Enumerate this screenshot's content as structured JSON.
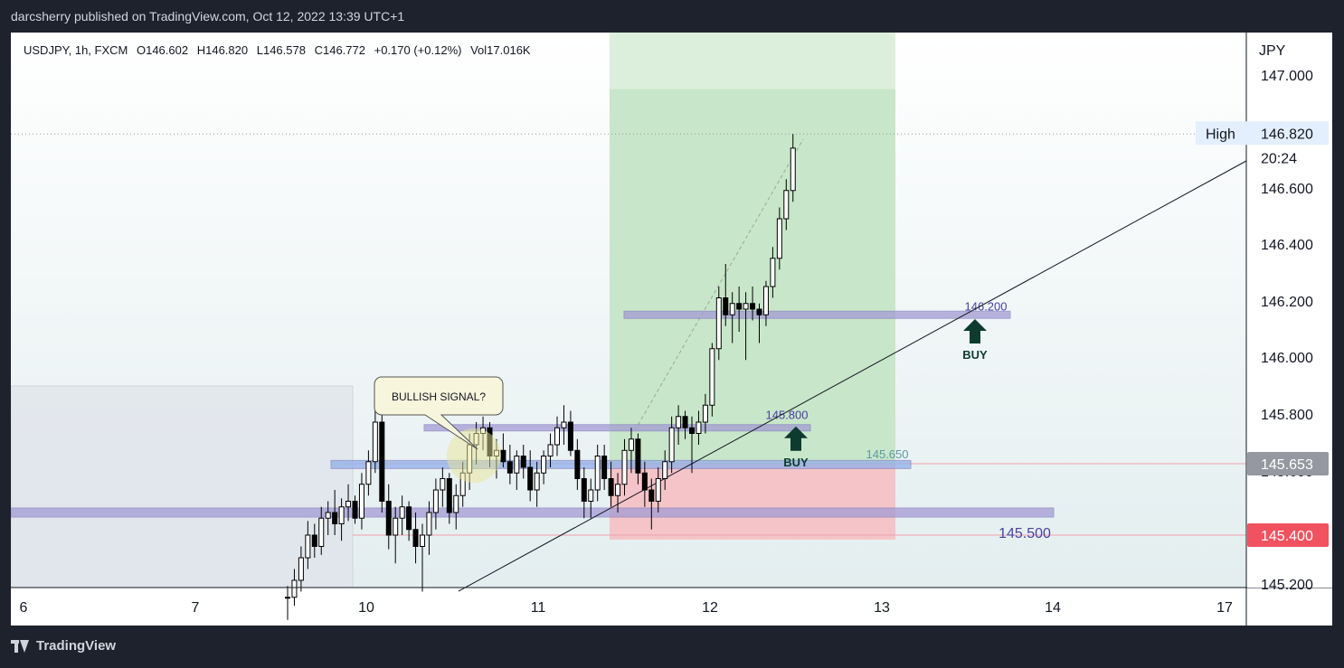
{
  "header": {
    "published": "darcsherry published on TradingView.com, Oct 12, 2022 13:39 UTC+1"
  },
  "legend": {
    "symbol": "USDJPY, 1h, FXCM",
    "open": "O146.602",
    "high": "H146.820",
    "low": "L146.578",
    "close": "C146.772",
    "change": "+0.170 (+0.12%)",
    "volume": "Vol17.016K"
  },
  "footer": {
    "brand": "TradingView"
  },
  "colors": {
    "bull": "#ffffff",
    "bear": "#000000",
    "wick": "#000000",
    "zone": "#a39bd4",
    "zone_blue": "#8fb0e8",
    "profit": "#c8e6c9",
    "loss": "#f4c4c8",
    "buy_arrow": "#0d3b2e",
    "price_red": "#f0525f",
    "price_grey": "#9598a1"
  },
  "chart_data": {
    "type": "candlestick",
    "currency": "JPY",
    "x_ticks": [
      "6",
      "7",
      "10",
      "11",
      "12",
      "13",
      "14",
      "17"
    ],
    "y_ticks": [
      "147.000",
      "146.600",
      "146.400",
      "146.200",
      "146.000",
      "145.800",
      "145.600",
      "145.200"
    ],
    "ylim": [
      145.18,
      147.18
    ],
    "price_tags": [
      {
        "label": "High",
        "value": 146.82,
        "text": "146.820",
        "style": "high"
      },
      {
        "label": "",
        "value": 145.653,
        "text": "145.653",
        "style": "grey"
      },
      {
        "label": "",
        "value": 145.4,
        "text": "145.400",
        "style": "red"
      }
    ],
    "countdown": "20:24",
    "candles": [
      [
        145.18,
        145.22,
        145.1,
        145.18
      ],
      [
        145.18,
        145.28,
        145.15,
        145.24
      ],
      [
        145.24,
        145.36,
        145.2,
        145.32
      ],
      [
        145.32,
        145.45,
        145.28,
        145.4
      ],
      [
        145.4,
        145.44,
        145.32,
        145.36
      ],
      [
        145.36,
        145.5,
        145.33,
        145.46
      ],
      [
        145.46,
        145.52,
        145.4,
        145.48
      ],
      [
        145.48,
        145.56,
        145.4,
        145.44
      ],
      [
        145.44,
        145.53,
        145.38,
        145.5
      ],
      [
        145.5,
        145.58,
        145.45,
        145.52
      ],
      [
        145.52,
        145.54,
        145.44,
        145.46
      ],
      [
        145.46,
        145.62,
        145.42,
        145.58
      ],
      [
        145.58,
        145.7,
        145.54,
        145.66
      ],
      [
        145.66,
        145.86,
        145.62,
        145.8
      ],
      [
        145.8,
        145.84,
        145.48,
        145.52
      ],
      [
        145.52,
        145.58,
        145.35,
        145.4
      ],
      [
        145.4,
        145.5,
        145.3,
        145.46
      ],
      [
        145.46,
        145.54,
        145.4,
        145.5
      ],
      [
        145.5,
        145.52,
        145.38,
        145.42
      ],
      [
        145.42,
        145.48,
        145.3,
        145.36
      ],
      [
        145.36,
        145.44,
        145.2,
        145.4
      ],
      [
        145.4,
        145.52,
        145.33,
        145.48
      ],
      [
        145.48,
        145.6,
        145.42,
        145.56
      ],
      [
        145.56,
        145.64,
        145.5,
        145.6
      ],
      [
        145.6,
        145.62,
        145.44,
        145.48
      ],
      [
        145.48,
        145.58,
        145.42,
        145.54
      ],
      [
        145.54,
        145.66,
        145.5,
        145.62
      ],
      [
        145.62,
        145.76,
        145.56,
        145.72
      ],
      [
        145.72,
        145.8,
        145.65,
        145.76
      ],
      [
        145.76,
        145.82,
        145.7,
        145.78
      ],
      [
        145.78,
        145.8,
        145.64,
        145.68
      ],
      [
        145.68,
        145.74,
        145.6,
        145.7
      ],
      [
        145.7,
        145.76,
        145.64,
        145.66
      ],
      [
        145.66,
        145.72,
        145.58,
        145.62
      ],
      [
        145.62,
        145.7,
        145.56,
        145.68
      ],
      [
        145.68,
        145.72,
        145.6,
        145.64
      ],
      [
        145.64,
        145.7,
        145.52,
        145.56
      ],
      [
        145.56,
        145.66,
        145.5,
        145.62
      ],
      [
        145.62,
        145.7,
        145.58,
        145.68
      ],
      [
        145.68,
        145.76,
        145.64,
        145.72
      ],
      [
        145.72,
        145.82,
        145.68,
        145.78
      ],
      [
        145.78,
        145.86,
        145.72,
        145.8
      ],
      [
        145.8,
        145.84,
        145.68,
        145.7
      ],
      [
        145.7,
        145.74,
        145.56,
        145.6
      ],
      [
        145.6,
        145.64,
        145.46,
        145.52
      ],
      [
        145.52,
        145.6,
        145.46,
        145.56
      ],
      [
        145.56,
        145.72,
        145.52,
        145.68
      ],
      [
        145.68,
        145.72,
        145.56,
        145.6
      ],
      [
        145.6,
        145.66,
        145.5,
        145.54
      ],
      [
        145.54,
        145.62,
        145.48,
        145.58
      ],
      [
        145.58,
        145.74,
        145.54,
        145.7
      ],
      [
        145.7,
        145.78,
        145.62,
        145.74
      ],
      [
        145.74,
        145.76,
        145.58,
        145.62
      ],
      [
        145.62,
        145.66,
        145.5,
        145.56
      ],
      [
        145.56,
        145.6,
        145.42,
        145.52
      ],
      [
        145.52,
        145.64,
        145.48,
        145.6
      ],
      [
        145.6,
        145.7,
        145.56,
        145.66
      ],
      [
        145.66,
        145.82,
        145.62,
        145.78
      ],
      [
        145.78,
        145.86,
        145.72,
        145.82
      ],
      [
        145.82,
        145.84,
        145.74,
        145.78
      ],
      [
        145.78,
        145.82,
        145.62,
        145.76
      ],
      [
        145.76,
        145.84,
        145.72,
        145.8
      ],
      [
        145.8,
        145.9,
        145.76,
        145.86
      ],
      [
        145.86,
        146.08,
        145.82,
        146.06
      ],
      [
        146.06,
        146.28,
        146.02,
        146.24
      ],
      [
        146.24,
        146.36,
        146.14,
        146.18
      ],
      [
        146.18,
        146.26,
        146.08,
        146.22
      ],
      [
        146.22,
        146.28,
        146.12,
        146.2
      ],
      [
        146.2,
        146.26,
        146.02,
        146.22
      ],
      [
        146.22,
        146.28,
        146.16,
        146.2
      ],
      [
        146.2,
        146.22,
        146.08,
        146.18
      ],
      [
        146.18,
        146.3,
        146.14,
        146.28
      ],
      [
        146.28,
        146.42,
        146.24,
        146.38
      ],
      [
        146.38,
        146.56,
        146.34,
        146.52
      ],
      [
        146.52,
        146.66,
        146.48,
        146.62
      ],
      [
        146.62,
        146.82,
        146.58,
        146.77
      ]
    ],
    "lines": [
      {
        "label": "146.200",
        "value": 146.18
      },
      {
        "label": "145.800",
        "value": 145.78
      },
      {
        "label": "145.650",
        "value": 145.65
      },
      {
        "label": "145.500",
        "value": 145.48
      }
    ],
    "callout": "BULLISH SIGNAL?",
    "markers": [
      {
        "label": "BUY",
        "value": 145.74
      },
      {
        "label": "BUY",
        "value": 146.12
      }
    ],
    "position": {
      "entry": 145.65,
      "target": 146.98,
      "stop": 145.4
    }
  }
}
